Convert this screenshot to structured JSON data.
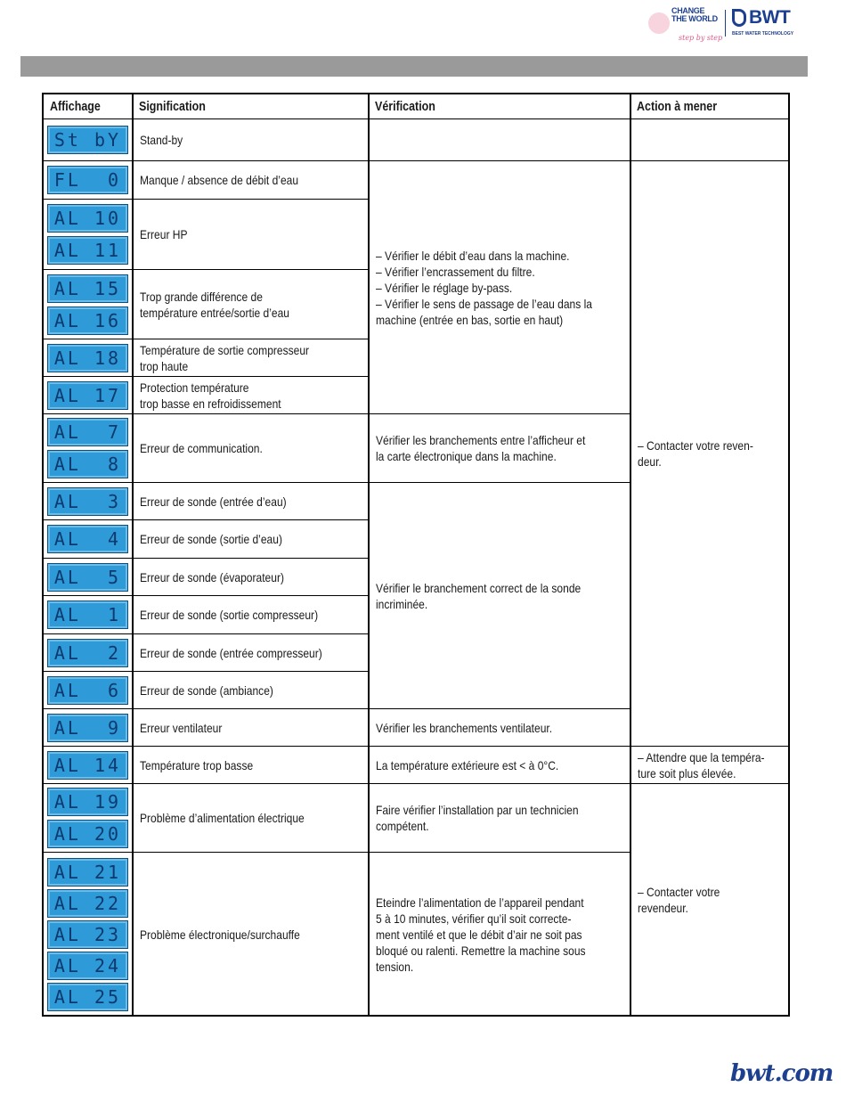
{
  "branding": {
    "campaign_logo": "CHANGE THE WORLD",
    "campaign_tagline": "step by step",
    "brand_logo": "BWT",
    "brand_tagline": "BEST WATER TECHNOLOGY",
    "footer_url": "bwt.com",
    "brand_color": "#1d3f8f",
    "lcd_color": "#2f9ad8"
  },
  "table": {
    "headers": [
      "Affichage",
      "Signification",
      "Vérification",
      "Action à mener"
    ],
    "rows": [
      {
        "displays": [
          "St bY"
        ],
        "meaning": "Stand-by"
      },
      {
        "displays": [
          "FL  0"
        ],
        "meaning": "Manque / absence de débit d’eau"
      },
      {
        "displays": [
          "AL 10",
          "AL 11"
        ],
        "meaning": "Erreur HP"
      },
      {
        "displays": [
          "AL 15",
          "AL 16"
        ],
        "meaning": "Trop grande différence de\ntempérature entrée/sortie d’eau"
      },
      {
        "displays": [
          "AL 18"
        ],
        "meaning": "Température de sortie compresseur\ntrop haute"
      },
      {
        "displays": [
          "AL 17"
        ],
        "meaning": "Protection température\ntrop basse en refroidissement"
      },
      {
        "displays": [
          "AL  7",
          "AL  8"
        ],
        "meaning": "Erreur de communication."
      },
      {
        "displays": [
          "AL  3"
        ],
        "meaning": "Erreur de sonde (entrée d’eau)"
      },
      {
        "displays": [
          "AL  4"
        ],
        "meaning": "Erreur de sonde (sortie d’eau)"
      },
      {
        "displays": [
          "AL  5"
        ],
        "meaning": "Erreur de sonde (évaporateur)"
      },
      {
        "displays": [
          "AL  1"
        ],
        "meaning": "Erreur de sonde (sortie compresseur)"
      },
      {
        "displays": [
          "AL  2"
        ],
        "meaning": "Erreur de sonde (entrée compresseur)"
      },
      {
        "displays": [
          "AL  6"
        ],
        "meaning": "Erreur de sonde (ambiance)"
      },
      {
        "displays": [
          "AL  9"
        ],
        "meaning": "Erreur ventilateur"
      },
      {
        "displays": [
          "AL 14"
        ],
        "meaning": "Température trop basse"
      },
      {
        "displays": [
          "AL 19",
          "AL 20"
        ],
        "meaning": "Problème d’alimentation électrique"
      },
      {
        "displays": [
          "AL 21",
          "AL 22",
          "AL 23",
          "AL 24",
          "AL 25"
        ],
        "meaning": "Problème électronique/surchauffe"
      }
    ],
    "verification": [
      {
        "rows": [
          0,
          0
        ],
        "text": ""
      },
      {
        "rows": [
          1,
          5
        ],
        "text": "– Vérifier le débit d’eau dans la machine.\n– Vérifier l’encrassement du filtre.\n– Vérifier le réglage by-pass.\n– Vérifier le sens de passage de l’eau dans la\n   machine (entrée en bas, sortie en haut)"
      },
      {
        "rows": [
          6,
          6
        ],
        "text": "Vérifier les branchements entre l’afficheur et\nla carte électronique dans la machine."
      },
      {
        "rows": [
          7,
          12
        ],
        "text": "Vérifier le branchement correct de la sonde\nincriminée."
      },
      {
        "rows": [
          13,
          13
        ],
        "text": "Vérifier les branchements ventilateur."
      },
      {
        "rows": [
          14,
          14
        ],
        "text": "La température extérieure est < à 0°C."
      },
      {
        "rows": [
          15,
          15
        ],
        "text": "Faire vérifier l’installation par un technicien\ncompétent."
      },
      {
        "rows": [
          16,
          16
        ],
        "text": "Eteindre l’alimentation de l’appareil pendant\n5 à 10 minutes, vérifier qu’il soit correcte-\nment ventilé et que le débit d’air ne soit pas\nbloqué ou ralenti. Remettre la machine sous\ntension."
      }
    ],
    "action": [
      {
        "rows": [
          0,
          0
        ],
        "text": ""
      },
      {
        "rows": [
          1,
          13
        ],
        "text": "– Contacter votre reven-\n   deur."
      },
      {
        "rows": [
          14,
          14
        ],
        "text": "– Attendre que la tempéra-\n   ture soit plus élevée."
      },
      {
        "rows": [
          15,
          16
        ],
        "text": "– Contacter votre revendeur."
      }
    ]
  }
}
